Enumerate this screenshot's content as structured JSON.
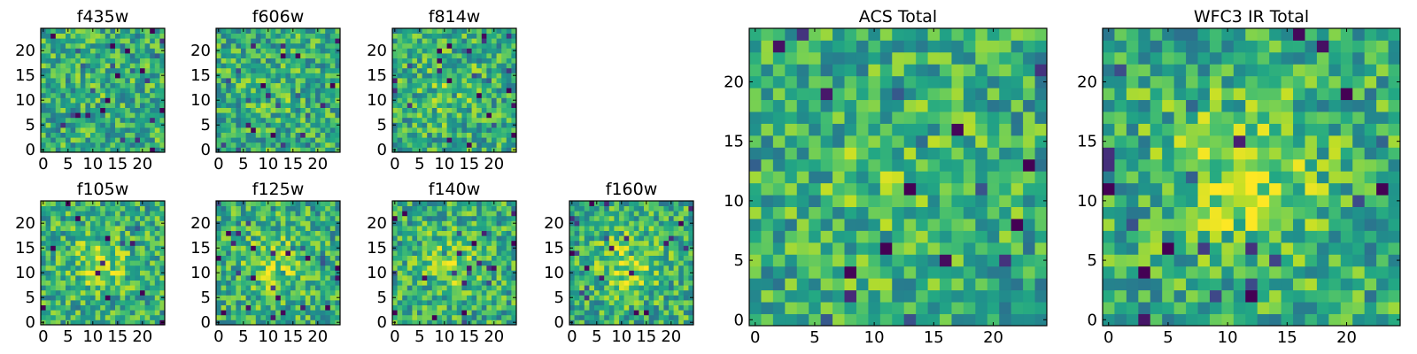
{
  "chart_data": [
    {
      "type": "heatmap",
      "title": "f435w",
      "x_ticks": [
        "0",
        "5",
        "10",
        "15",
        "20"
      ],
      "y_ticks": [
        "0",
        "5",
        "10",
        "15",
        "20"
      ],
      "xlim": [
        -0.5,
        24.5
      ],
      "ylim": [
        -0.5,
        24.5
      ],
      "cells": [
        25,
        25
      ],
      "colormap": "viridis",
      "center_brightness": 0.1,
      "seed": 11
    },
    {
      "type": "heatmap",
      "title": "f606w",
      "x_ticks": [
        "0",
        "5",
        "10",
        "15",
        "20"
      ],
      "y_ticks": [
        "0",
        "5",
        "10",
        "15",
        "20"
      ],
      "xlim": [
        -0.5,
        24.5
      ],
      "ylim": [
        -0.5,
        24.5
      ],
      "cells": [
        25,
        25
      ],
      "colormap": "viridis",
      "center_brightness": 0.15,
      "seed": 23
    },
    {
      "type": "heatmap",
      "title": "f814w",
      "x_ticks": [
        "0",
        "5",
        "10",
        "15",
        "20"
      ],
      "y_ticks": [
        "0",
        "5",
        "10",
        "15",
        "20"
      ],
      "xlim": [
        -0.5,
        24.5
      ],
      "ylim": [
        -0.5,
        24.5
      ],
      "cells": [
        25,
        25
      ],
      "colormap": "viridis",
      "center_brightness": 0.3,
      "seed": 37
    },
    {
      "type": "heatmap",
      "title": "f105w",
      "x_ticks": [
        "0",
        "5",
        "10",
        "15",
        "20"
      ],
      "y_ticks": [
        "0",
        "5",
        "10",
        "15",
        "20"
      ],
      "xlim": [
        -0.5,
        24.5
      ],
      "ylim": [
        -0.5,
        24.5
      ],
      "cells": [
        25,
        25
      ],
      "colormap": "viridis",
      "center_brightness": 0.55,
      "seed": 41
    },
    {
      "type": "heatmap",
      "title": "f125w",
      "x_ticks": [
        "0",
        "5",
        "10",
        "15",
        "20"
      ],
      "y_ticks": [
        "0",
        "5",
        "10",
        "15",
        "20"
      ],
      "xlim": [
        -0.5,
        24.5
      ],
      "ylim": [
        -0.5,
        24.5
      ],
      "cells": [
        25,
        25
      ],
      "colormap": "viridis",
      "center_brightness": 0.6,
      "seed": 53
    },
    {
      "type": "heatmap",
      "title": "f140w",
      "x_ticks": [
        "0",
        "5",
        "10",
        "15",
        "20"
      ],
      "y_ticks": [
        "0",
        "5",
        "10",
        "15",
        "20"
      ],
      "xlim": [
        -0.5,
        24.5
      ],
      "ylim": [
        -0.5,
        24.5
      ],
      "cells": [
        25,
        25
      ],
      "colormap": "viridis",
      "center_brightness": 0.55,
      "seed": 67
    },
    {
      "type": "heatmap",
      "title": "f160w",
      "x_ticks": [
        "0",
        "5",
        "10",
        "15",
        "20"
      ],
      "y_ticks": [
        "0",
        "5",
        "10",
        "15",
        "20"
      ],
      "xlim": [
        -0.5,
        24.5
      ],
      "ylim": [
        -0.5,
        24.5
      ],
      "cells": [
        25,
        25
      ],
      "colormap": "viridis",
      "center_brightness": 0.65,
      "seed": 79
    },
    {
      "type": "heatmap",
      "title": "ACS Total",
      "x_ticks": [
        "0",
        "5",
        "10",
        "15",
        "20"
      ],
      "y_ticks": [
        "0",
        "5",
        "10",
        "15",
        "20"
      ],
      "xlim": [
        -0.5,
        24.5
      ],
      "ylim": [
        -0.5,
        24.5
      ],
      "cells": [
        25,
        25
      ],
      "colormap": "viridis",
      "center_brightness": 0.3,
      "seed": 97
    },
    {
      "type": "heatmap",
      "title": "WFC3 IR Total",
      "x_ticks": [
        "0",
        "5",
        "10",
        "15",
        "20"
      ],
      "y_ticks": [
        "0",
        "5",
        "10",
        "15",
        "20"
      ],
      "xlim": [
        -0.5,
        24.5
      ],
      "ylim": [
        -0.5,
        24.5
      ],
      "cells": [
        25,
        25
      ],
      "colormap": "viridis",
      "center_brightness": 0.75,
      "seed": 103
    }
  ]
}
